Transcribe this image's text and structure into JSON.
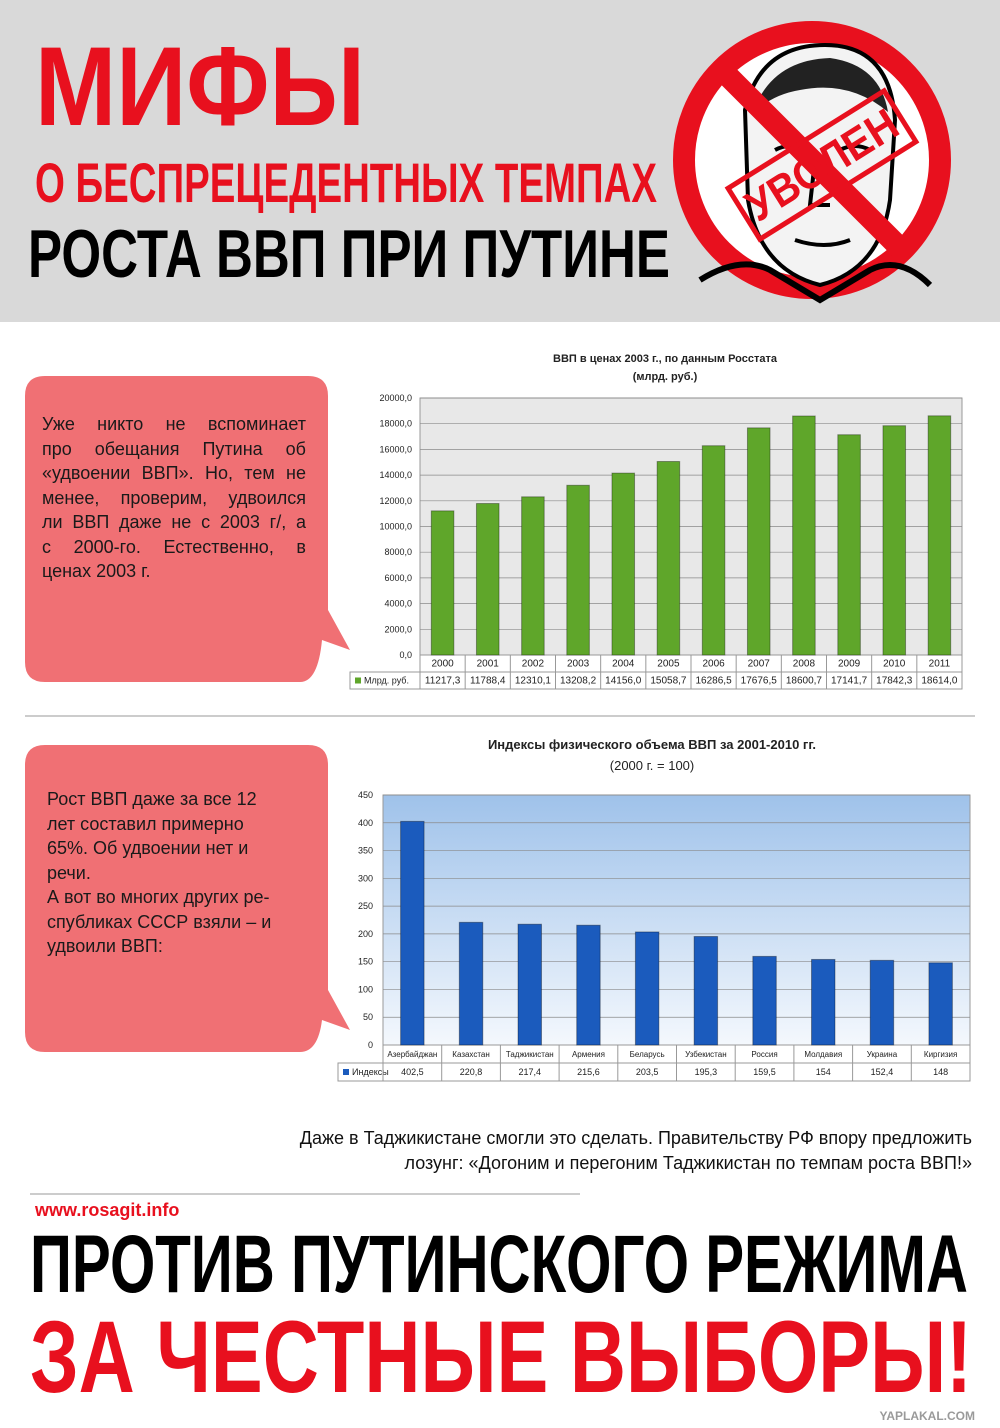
{
  "header": {
    "title_1": "МИФЫ",
    "title_2": "О БЕСПРЕЦЕДЕНТНЫХ ТЕМПАХ",
    "title_3": "РОСТА ВВП ПРИ ПУТИНЕ",
    "stamp": "УВОЛЕН"
  },
  "bubble_1": {
    "lines": [
      "Уже никто не вспоминает",
      "про обещания Путина об",
      "«удвоении ВВП». Но, тем не",
      "менее, проверим, удвоился",
      "ли ВВП даже не с 2003 г/, а",
      "с 2000-го. Естественно, в",
      "ценах 2003 г."
    ]
  },
  "bubble_2": {
    "lines": [
      "Рост ВВП даже за все 12",
      "лет составил примерно",
      "65%. Об удвоении нет и",
      "речи.",
      "А вот во многих других ре-",
      "спубликах СССР взяли – и",
      "удвоили ВВП:"
    ]
  },
  "note": {
    "lines": [
      "Даже в Таджикистане смогли это сделать. Правительству РФ впору предложить",
      "лозунг: «Догоним и перегоним Таджикистан по темпам роста ВВП!»"
    ]
  },
  "footer": {
    "url": "www.rosagit.info",
    "slogan_1": "ПРОТИВ ПУТИНСКОГО РЕЖИМА",
    "slogan_2": "ЗА ЧЕСТНЫЕ ВЫБОРЫ!",
    "watermark": "YAPLAKAL.COM"
  },
  "chart_data": [
    {
      "type": "bar",
      "title": "ВВП в ценах 2003 г., по данным Росстата",
      "subtitle": "(млрд. руб.)",
      "categories": [
        "2000",
        "2001",
        "2002",
        "2003",
        "2004",
        "2005",
        "2006",
        "2007",
        "2008",
        "2009",
        "2010",
        "2011"
      ],
      "series": [
        {
          "name": "Млрд. руб.",
          "color": "#5fa62a",
          "values": [
            11217.3,
            11788.4,
            12310.1,
            13208.2,
            14156.0,
            15058.7,
            16286.5,
            17676.5,
            18600.7,
            17141.7,
            17842.3,
            18614.0
          ],
          "value_labels": [
            "11217,3",
            "11788,4",
            "12310,1",
            "13208,2",
            "14156,0",
            "15058,7",
            "16286,5",
            "17676,5",
            "18600,7",
            "17141,7",
            "17842,3",
            "18614,0"
          ]
        }
      ],
      "ylim": [
        0,
        20000
      ],
      "yticks": [
        {
          "value": 0,
          "label": "0,0"
        },
        {
          "value": 2000,
          "label": "2000,0"
        },
        {
          "value": 4000,
          "label": "4000,0"
        },
        {
          "value": 6000,
          "label": "6000,0"
        },
        {
          "value": 8000,
          "label": "8000,0"
        },
        {
          "value": 10000,
          "label": "10000,0"
        },
        {
          "value": 12000,
          "label": "12000,0"
        },
        {
          "value": 14000,
          "label": "14000,0"
        },
        {
          "value": 16000,
          "label": "16000,0"
        },
        {
          "value": 18000,
          "label": "18000,0"
        },
        {
          "value": 20000,
          "label": "20000,0"
        }
      ],
      "grid": true
    },
    {
      "type": "bar",
      "title": "Индексы физического объема ВВП за 2001-2010 гг.",
      "subtitle": "(2000 г. = 100)",
      "categories": [
        "Азербайджан",
        "Казахстан",
        "Таджикистан",
        "Армения",
        "Беларусь",
        "Узбекистан",
        "Россия",
        "Молдавия",
        "Украина",
        "Киргизия"
      ],
      "series": [
        {
          "name": "Индексы",
          "color": "#1b5bbd",
          "values": [
            402.5,
            220.8,
            217.4,
            215.6,
            203.5,
            195.3,
            159.5,
            154,
            152.4,
            148
          ],
          "value_labels": [
            "402,5",
            "220,8",
            "217,4",
            "215,6",
            "203,5",
            "195,3",
            "159,5",
            "154",
            "152,4",
            "148"
          ]
        }
      ],
      "ylim": [
        0,
        450
      ],
      "yticks": [
        0,
        50,
        100,
        150,
        200,
        250,
        300,
        350,
        400,
        450
      ],
      "grid": true
    }
  ]
}
